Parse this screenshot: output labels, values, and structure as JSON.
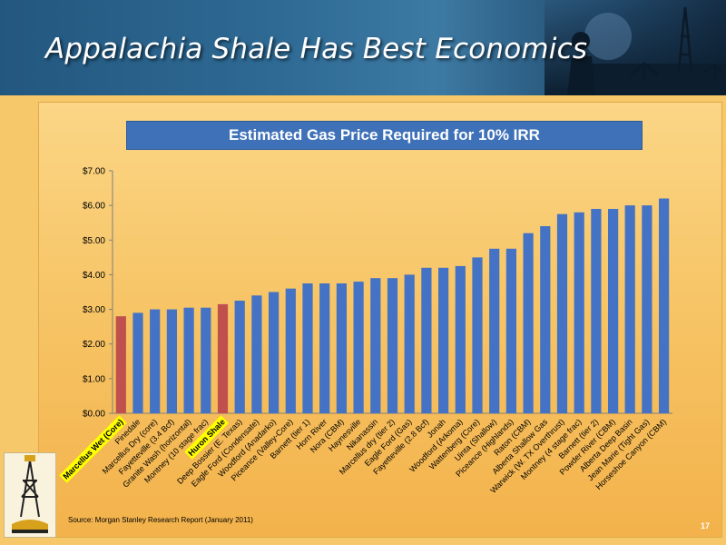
{
  "slide": {
    "title": "Appalachia Shale Has Best Economics",
    "source": "Source: Morgan Stanley Research Report (January 2011)",
    "page_number": "17",
    "accent_color": "#4472c4",
    "highlight_color": "#c0504d",
    "highlight_label_bg": "#ffff00"
  },
  "chart_data": {
    "type": "bar",
    "title": "Estimated Gas Price Required for 10% IRR",
    "xlabel": "",
    "ylabel": "",
    "ylim": [
      0,
      7
    ],
    "y_ticks": [
      "$0.00",
      "$1.00",
      "$2.00",
      "$3.00",
      "$4.00",
      "$5.00",
      "$6.00",
      "$7.00"
    ],
    "grid": false,
    "categories": [
      "Marcellus Wet (Core)",
      "Pinedale",
      "Marcellus Dry (core)",
      "Fayetteville (3.4 Bcf)",
      "Granite Wash (horizontal)",
      "Montney (10 stage frac)",
      "Huron Shale",
      "Deep Bossier (E. Texas)",
      "Eagle Ford (Condensate)",
      "Woodford (Anadarko)",
      "Piceance (Valley-Core)",
      "Barnett (tier 1)",
      "Horn River",
      "Nora (CBM)",
      "Haynesville",
      "Nikanassin",
      "Marcellus dry (tier 2)",
      "Eagle Ford (Gas)",
      "Fayetteville (2.8 Bcf)",
      "Jonah",
      "Woodford (Arkoma)",
      "Wattenberg (Core)",
      "Uinta (Shallow)",
      "Piceance (Highlands)",
      "Raton (CBM)",
      "Alberta Shallow Gas",
      "Warwick (W. TX Overthrust)",
      "Montney (4 stage frac)",
      "Barnett (tier 2)",
      "Powder River (CBM)",
      "Alberta Deep Basin",
      "Jean Marie (Tight Gas)",
      "Horseshoe Canyon (CBM)"
    ],
    "values": [
      2.8,
      2.9,
      3.0,
      3.0,
      3.05,
      3.05,
      3.15,
      3.25,
      3.4,
      3.5,
      3.6,
      3.75,
      3.75,
      3.75,
      3.8,
      3.9,
      3.9,
      4.0,
      4.2,
      4.2,
      4.25,
      4.5,
      4.75,
      4.75,
      5.2,
      5.4,
      5.75,
      5.8,
      5.9,
      5.9,
      6.0,
      6.0,
      6.2
    ],
    "highlighted": [
      "Marcellus Wet (Core)",
      "Huron Shale"
    ]
  }
}
